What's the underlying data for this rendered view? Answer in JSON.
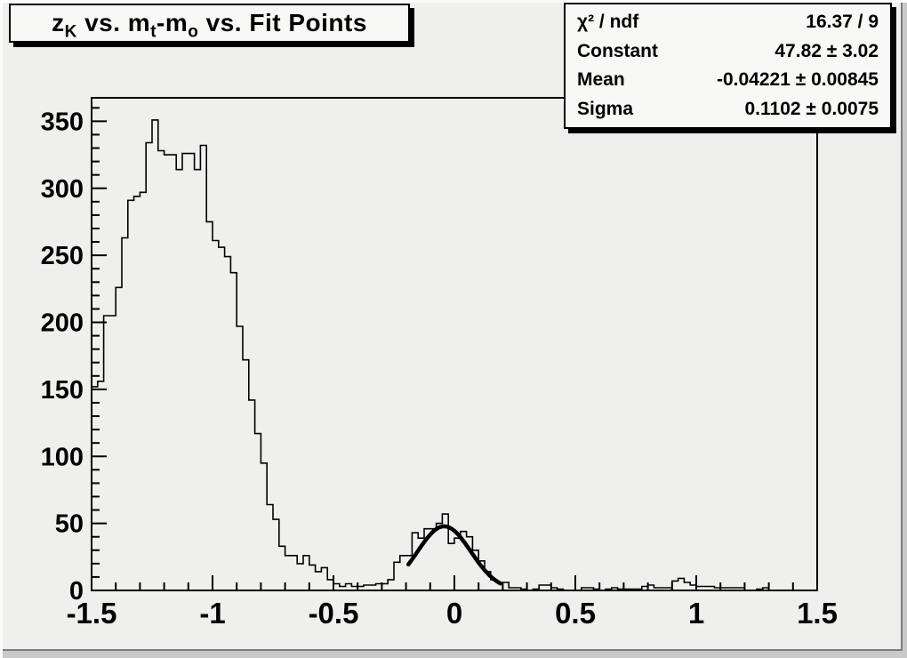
{
  "title": {
    "segments": [
      {
        "text": "z"
      },
      {
        "text": "K",
        "sub": true
      },
      {
        "text": " vs. m"
      },
      {
        "text": "t",
        "sub": true
      },
      {
        "text": "-m"
      },
      {
        "text": "o",
        "sub": true
      },
      {
        "text": " vs. Fit Points"
      }
    ],
    "plain": "z_K vs. m_t-m_o vs. Fit Points"
  },
  "stats_box": {
    "rows": [
      {
        "label": "χ² / ndf",
        "value": "16.37 / 9"
      },
      {
        "label": "Constant",
        "value": "47.82 ± 3.02"
      },
      {
        "label": "Mean",
        "value": "-0.04221 ± 0.00845"
      },
      {
        "label": "Sigma",
        "value": "0.1102 ± 0.0075"
      }
    ]
  },
  "colors": {
    "canvas_bg": "#efefed",
    "outer_strip": "#c9c9c9",
    "box_bg": "#f8f8f6",
    "line": "#000000",
    "bevel_light": "#fbfbfb",
    "bevel_dark": "#7c7c7c"
  },
  "chart_data": {
    "type": "bar",
    "subtype": "histogram-step",
    "title": "z_K vs. m_t-m_o vs. Fit Points",
    "xlabel": "",
    "ylabel": "",
    "xlim": [
      -1.5,
      1.5
    ],
    "ylim": [
      0,
      367.5
    ],
    "nbins": 120,
    "bin_width": 0.025,
    "bins": [
      152,
      156,
      205,
      205,
      226,
      263,
      291,
      294,
      297,
      334,
      351,
      328,
      325,
      325,
      314,
      326,
      326,
      314,
      332,
      275,
      261,
      256,
      249,
      237,
      197,
      172,
      142,
      117,
      95,
      64,
      53,
      33,
      26,
      26,
      20,
      26,
      19,
      14,
      17,
      8,
      5,
      3,
      5,
      3,
      3,
      4,
      4,
      5,
      5,
      8,
      21,
      26,
      26,
      43,
      39,
      46,
      46,
      50,
      57,
      35,
      39,
      44,
      40,
      30,
      22,
      14,
      8,
      6,
      6,
      2,
      2,
      1,
      0,
      1,
      4,
      4,
      2,
      1,
      0,
      0,
      0,
      2,
      2,
      1,
      0,
      1,
      2,
      1,
      1,
      1,
      1,
      3,
      4,
      2,
      2,
      2,
      7,
      9,
      6,
      4,
      3,
      3,
      3,
      2,
      2,
      2,
      2,
      2,
      0,
      0,
      1,
      2,
      0,
      0,
      0,
      0,
      0,
      0,
      0,
      0
    ],
    "xticks": {
      "major": [
        -1.5,
        -1,
        -0.5,
        0,
        0.5,
        1,
        1.5
      ],
      "labels": [
        "-1.5",
        "-1",
        "-0.5",
        "0",
        "0.5",
        "1",
        "1.5"
      ],
      "minor_step": 0.1
    },
    "yticks": {
      "major": [
        0,
        50,
        100,
        150,
        200,
        250,
        300,
        350
      ],
      "labels": [
        "0",
        "50",
        "100",
        "150",
        "200",
        "250",
        "300",
        "350"
      ],
      "minor_step": 10
    },
    "fit": {
      "type": "gaussian",
      "constant": 47.82,
      "mean": -0.04221,
      "sigma": 0.1102,
      "draw_range": [
        -0.19,
        0.19
      ]
    },
    "grid": false,
    "legend_position": "none"
  }
}
